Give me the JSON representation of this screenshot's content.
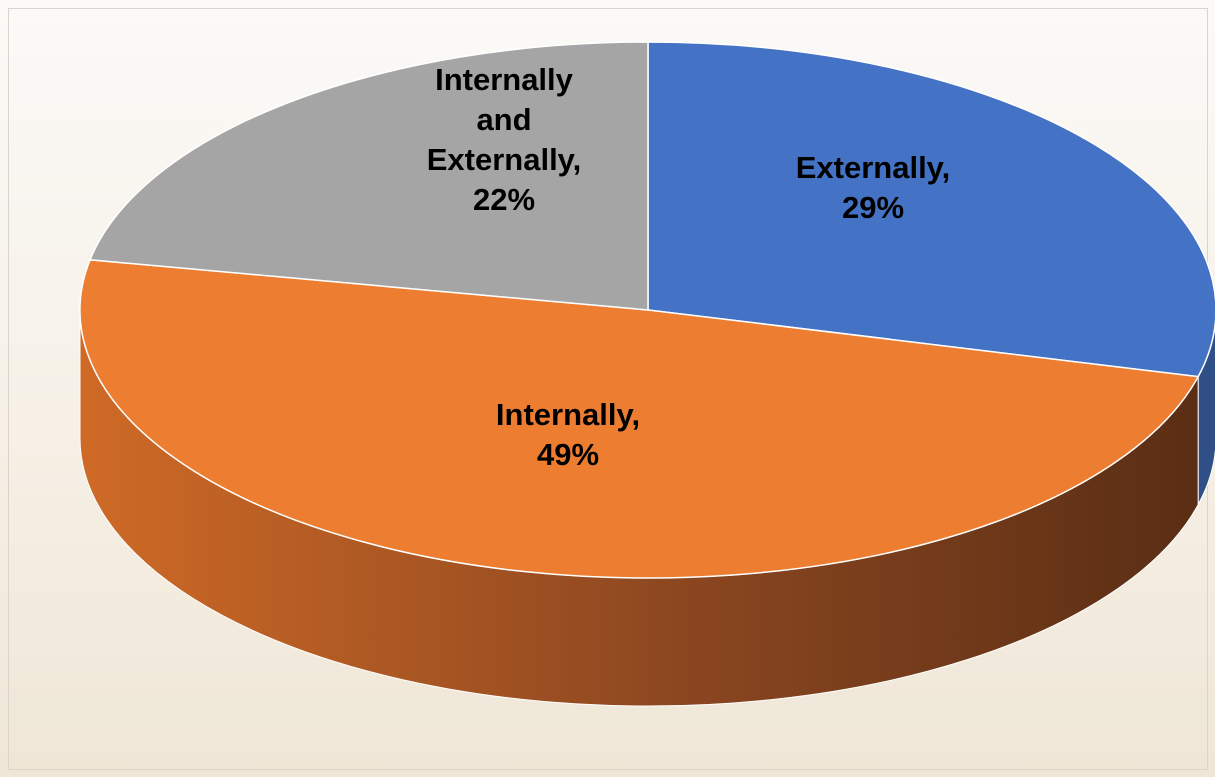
{
  "chart_data": {
    "type": "pie",
    "title": "",
    "slices": [
      {
        "label": "Externally",
        "value": 29,
        "value_label": "29%",
        "color": "#4472C4",
        "side_dark": "#2f4f86"
      },
      {
        "label": "Internally",
        "value": 49,
        "value_label": "49%",
        "color": "#ED7D31",
        "side_dark": "#5e3015"
      },
      {
        "label": "Internally and Externally",
        "value": 22,
        "value_label": "22%",
        "color": "#A5A5A5",
        "side_dark": "#6e6e6e"
      }
    ],
    "data_labels": [
      {
        "lines": [
          "Externally,",
          "29%"
        ]
      },
      {
        "lines": [
          "Internally,",
          "49%"
        ]
      },
      {
        "lines": [
          "Internally",
          "and",
          "Externally,",
          "22%"
        ]
      }
    ],
    "style": "3d",
    "legend": "none"
  }
}
